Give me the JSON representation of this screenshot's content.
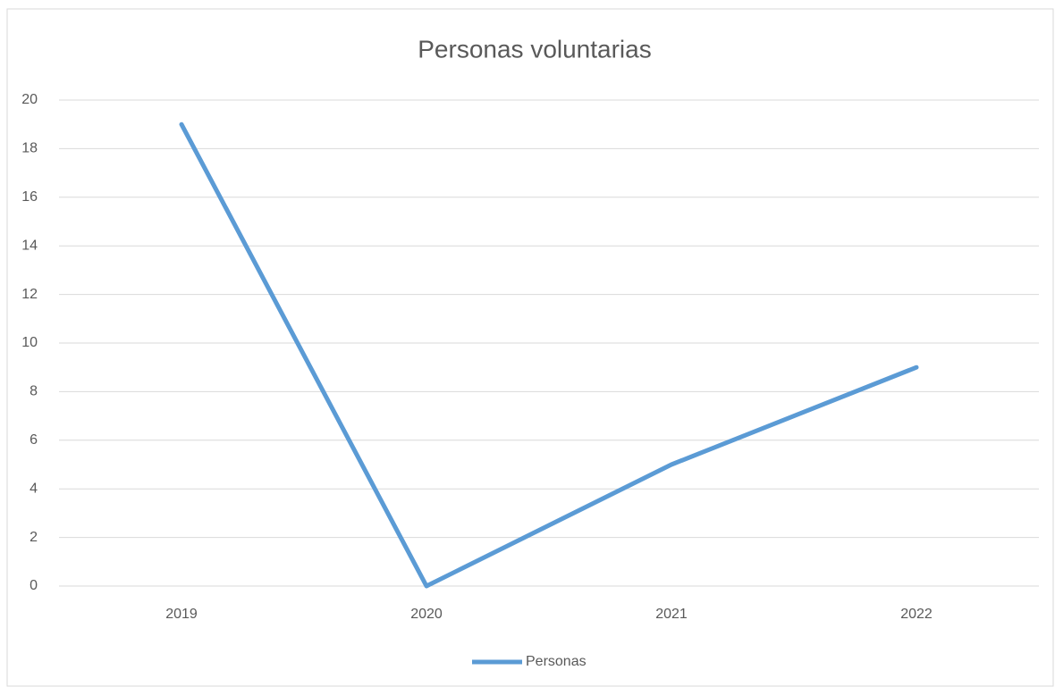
{
  "chart_data": {
    "type": "line",
    "title": "Personas voluntarias",
    "categories": [
      "2019",
      "2020",
      "2021",
      "2022"
    ],
    "series": [
      {
        "name": "Personas",
        "color": "#5b9bd5",
        "values": [
          19,
          0,
          5,
          9
        ]
      }
    ],
    "ylim": [
      0,
      20
    ],
    "yticks": [
      0,
      2,
      4,
      6,
      8,
      10,
      12,
      14,
      16,
      18,
      20
    ],
    "grid": true,
    "legend": "bottom"
  }
}
